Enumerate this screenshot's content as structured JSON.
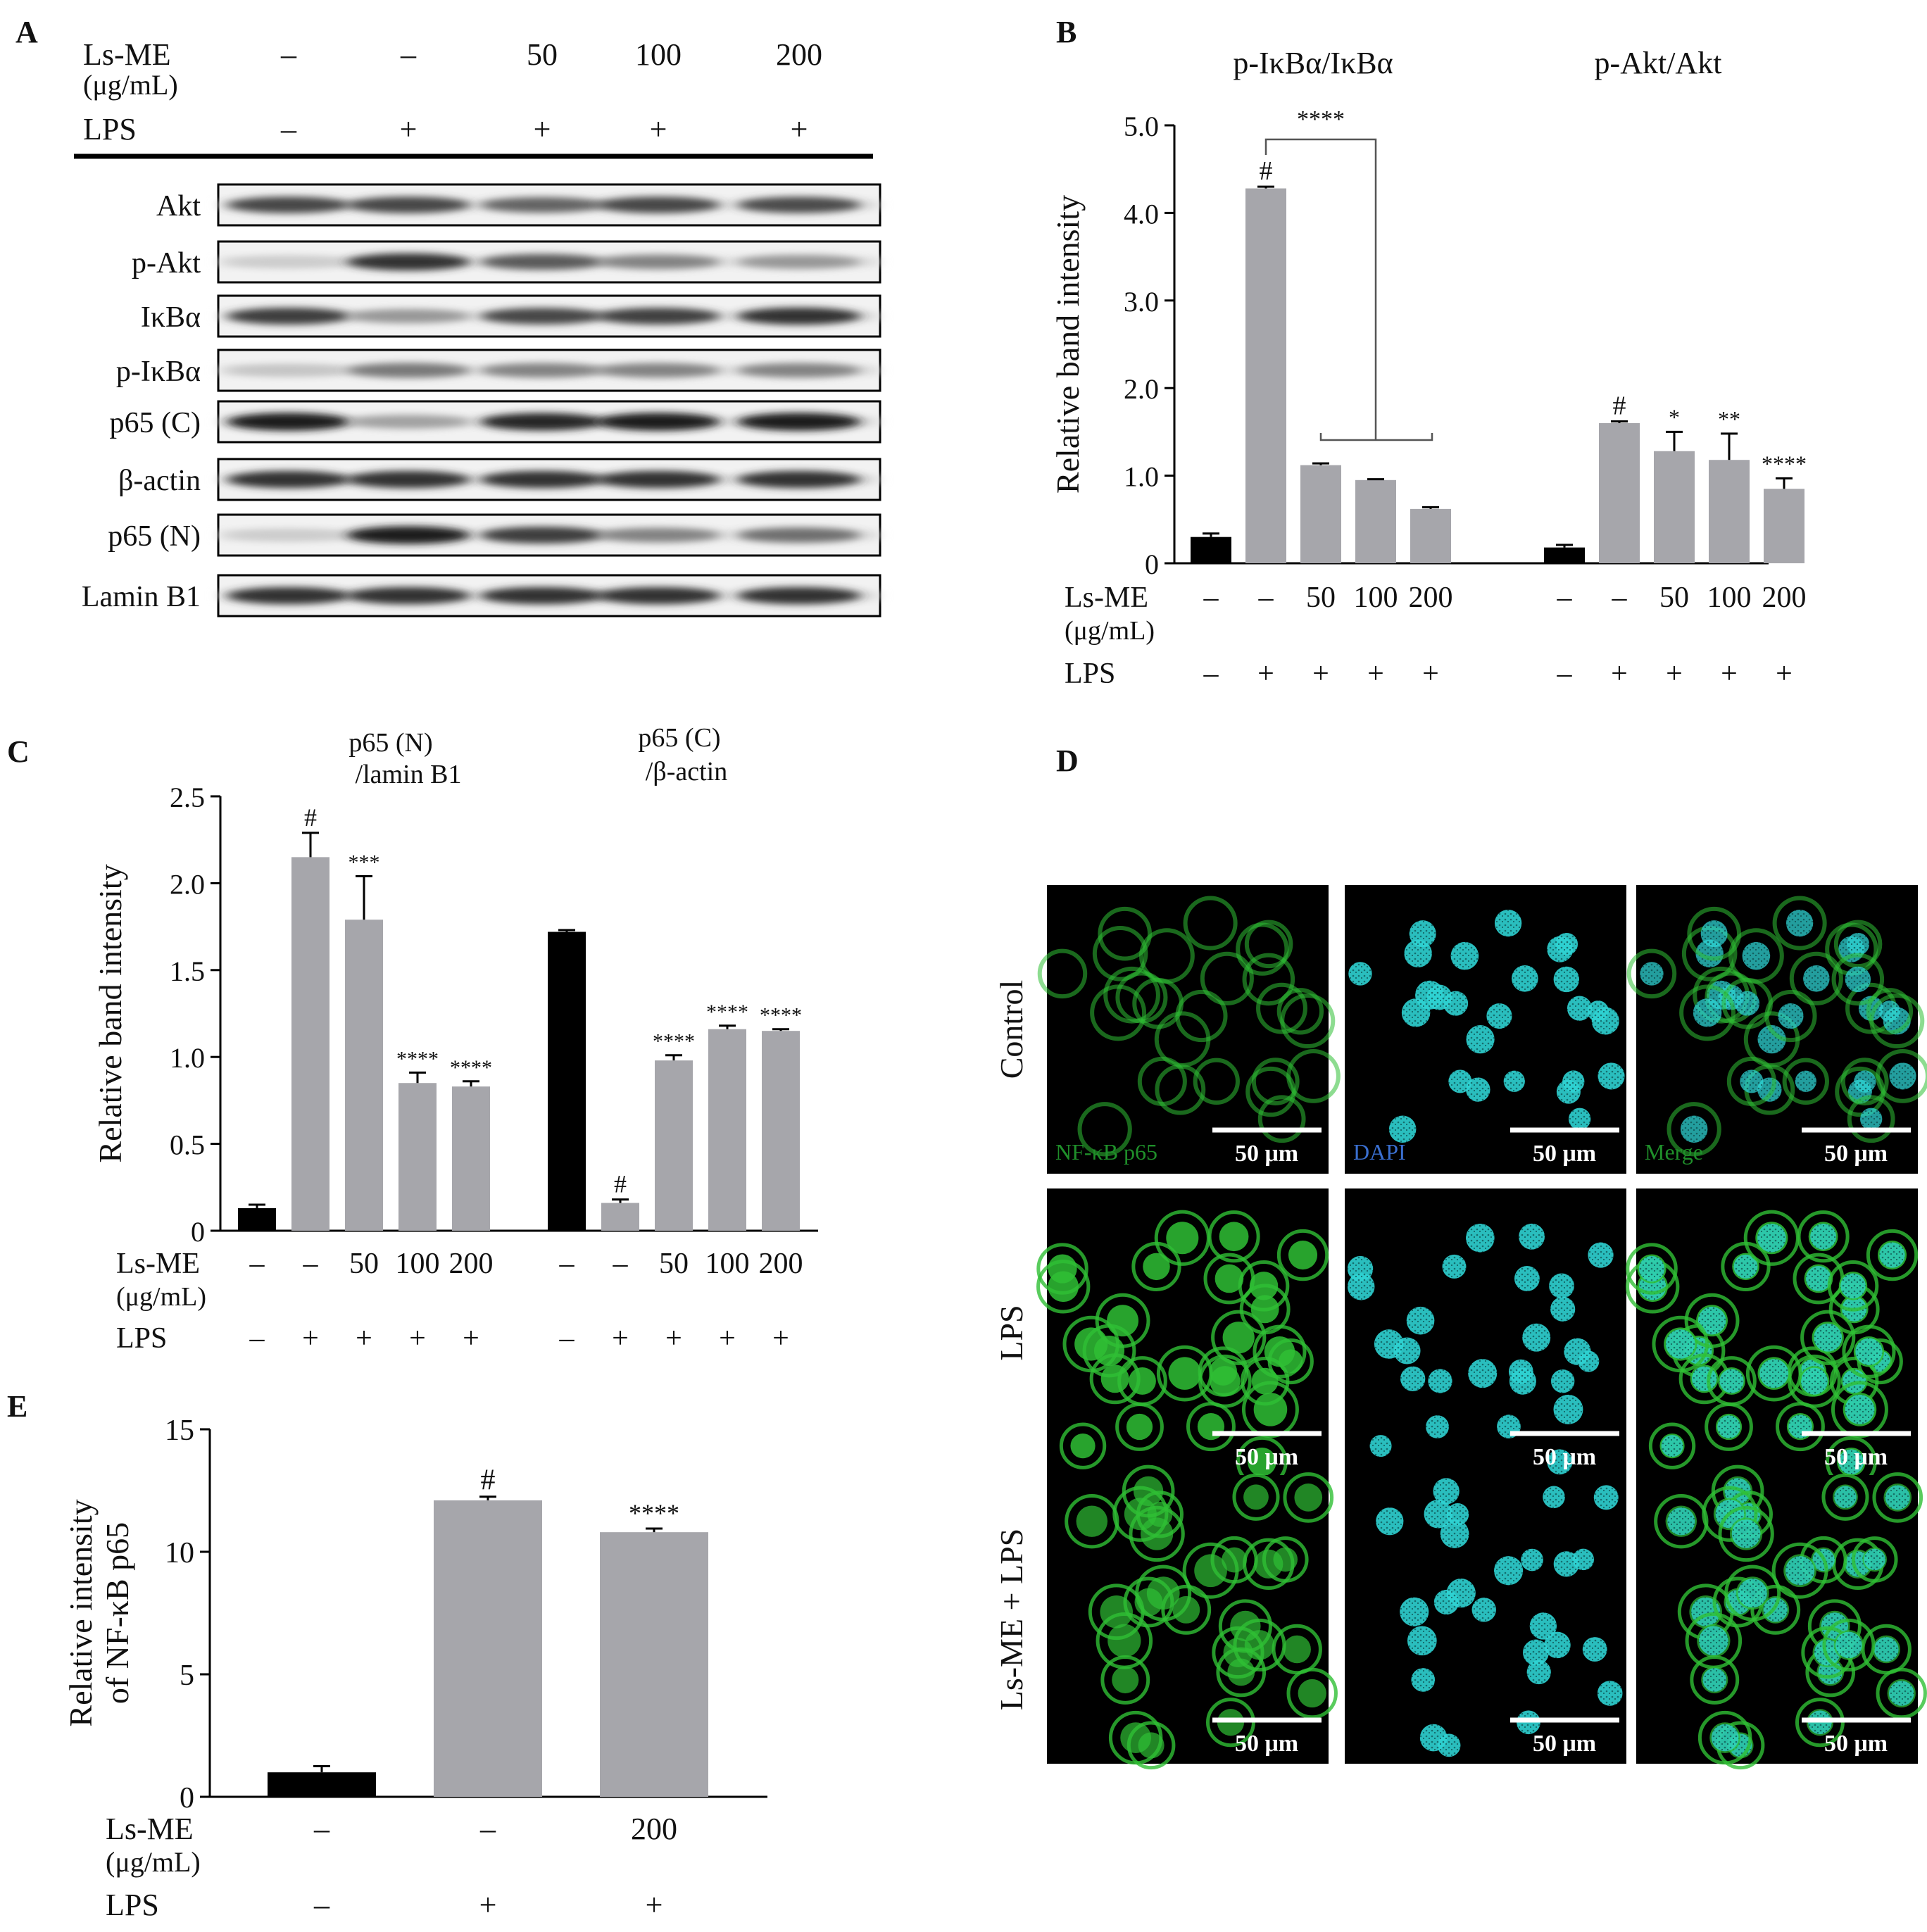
{
  "panels": {
    "A": {
      "letter": "A",
      "header": {
        "lsme_label": "Ls-ME",
        "unit_label": "(μg/mL)",
        "lps_label": "LPS",
        "lsme_values": [
          "–",
          "–",
          "50",
          "100",
          "200"
        ],
        "lps_values": [
          "–",
          "+",
          "+",
          "+",
          "+"
        ]
      },
      "blots": [
        {
          "label": "Akt",
          "intensity": [
            0.75,
            0.75,
            0.6,
            0.75,
            0.72
          ]
        },
        {
          "label": "p-Akt",
          "intensity": [
            0.08,
            0.85,
            0.65,
            0.45,
            0.35
          ]
        },
        {
          "label": "IκBα",
          "intensity": [
            0.8,
            0.35,
            0.75,
            0.78,
            0.85
          ]
        },
        {
          "label": "p-IκBα",
          "intensity": [
            0.12,
            0.5,
            0.45,
            0.45,
            0.45
          ]
        },
        {
          "label": "p65 (C)",
          "intensity": [
            0.95,
            0.3,
            0.9,
            0.95,
            0.95
          ]
        },
        {
          "label": "β-actin",
          "intensity": [
            0.85,
            0.85,
            0.85,
            0.85,
            0.85
          ]
        },
        {
          "label": "p65 (N)",
          "intensity": [
            0.08,
            0.95,
            0.8,
            0.45,
            0.55
          ]
        },
        {
          "label": "Lamin B1",
          "intensity": [
            0.85,
            0.85,
            0.85,
            0.85,
            0.85
          ]
        }
      ]
    },
    "B": {
      "letter": "B"
    },
    "C": {
      "letter": "C"
    },
    "D": {
      "letter": "D",
      "row_labels": [
        "Control",
        "LPS",
        "Ls-ME + LPS"
      ],
      "channel_labels": [
        "NF-κB p65",
        "DAPI",
        "Merge"
      ],
      "scale_bar_label": "50 μm",
      "colors": {
        "nfkb": "#2fbf35",
        "dapi": "#2fd3d3",
        "background": "#000000",
        "nfkb_label": "#1f8f2a",
        "dapi_label": "#3a6fd0",
        "merge_label": "#1f8f2a"
      }
    },
    "E": {
      "letter": "E"
    }
  },
  "chart_data": [
    {
      "panel": "B",
      "type": "bar",
      "ylabel": "Relative band intensity",
      "ylim": [
        0,
        5
      ],
      "yticks": [
        "0",
        "1.0",
        "2.0",
        "3.0",
        "4.0",
        "5.0"
      ],
      "groups": [
        {
          "name": "p-IκBα/IκBα",
          "lsme": [
            "–",
            "–",
            "50",
            "100",
            "200"
          ],
          "lps": [
            "–",
            "+",
            "+",
            "+",
            "+"
          ],
          "values": [
            0.3,
            4.28,
            1.12,
            0.95,
            0.62
          ],
          "errors": [
            0.04,
            0.02,
            0.02,
            0.01,
            0.02
          ],
          "annotations": [
            "",
            "#",
            "",
            "",
            ""
          ]
        },
        {
          "name": "p-Akt/Akt",
          "lsme": [
            "–",
            "–",
            "50",
            "100",
            "200"
          ],
          "lps": [
            "–",
            "+",
            "+",
            "+",
            "+"
          ],
          "values": [
            0.18,
            1.6,
            1.28,
            1.18,
            0.85
          ],
          "errors": [
            0.03,
            0.02,
            0.22,
            0.3,
            0.12
          ],
          "annotations": [
            "",
            "#",
            "*",
            "**",
            "****"
          ]
        }
      ],
      "bracket_label": "****",
      "colors": {
        "control": "#000000",
        "treated": "#a6a6ab"
      },
      "axis_labels": {
        "lsme": "Ls-ME",
        "unit": "(μg/mL)",
        "lps": "LPS"
      }
    },
    {
      "panel": "C",
      "type": "bar",
      "ylabel": "Relative band intensity",
      "ylim": [
        0,
        2.5
      ],
      "yticks": [
        "0",
        "0.5",
        "1.0",
        "1.5",
        "2.0",
        "2.5"
      ],
      "groups": [
        {
          "name_line1": "p65 (N)",
          "name_line2": "/lamin B1",
          "lsme": [
            "–",
            "–",
            "50",
            "100",
            "200"
          ],
          "lps": [
            "–",
            "+",
            "+",
            "+",
            "+"
          ],
          "values": [
            0.13,
            2.15,
            1.79,
            0.85,
            0.83
          ],
          "errors": [
            0.02,
            0.14,
            0.25,
            0.06,
            0.03
          ],
          "annotations": [
            "",
            "#",
            "***",
            "****",
            "****"
          ]
        },
        {
          "name_line1": "p65 (C)",
          "name_line2": "/β-actin",
          "lsme": [
            "–",
            "–",
            "50",
            "100",
            "200"
          ],
          "lps": [
            "–",
            "+",
            "+",
            "+",
            "+"
          ],
          "values": [
            1.72,
            0.16,
            0.98,
            1.16,
            1.15
          ],
          "errors": [
            0.01,
            0.02,
            0.03,
            0.02,
            0.01
          ],
          "annotations": [
            "",
            "#",
            "****",
            "****",
            "****"
          ]
        }
      ],
      "colors": {
        "control": "#000000",
        "treated": "#a6a6ab"
      },
      "axis_labels": {
        "lsme": "Ls-ME",
        "unit": "(μg/mL)",
        "lps": "LPS"
      }
    },
    {
      "panel": "E",
      "type": "bar",
      "ylabel_line1": "Relative intensity",
      "ylabel_line2": "of NF-κB p65",
      "ylim": [
        0,
        15
      ],
      "yticks": [
        "0",
        "5",
        "10",
        "15"
      ],
      "lsme": [
        "–",
        "–",
        "200"
      ],
      "lps": [
        "–",
        "+",
        "+"
      ],
      "values": [
        1.0,
        12.1,
        10.8
      ],
      "errors": [
        0.25,
        0.15,
        0.15
      ],
      "annotations": [
        "",
        "#",
        "****"
      ],
      "colors": {
        "control": "#000000",
        "treated": "#a6a6ab"
      },
      "axis_labels": {
        "lsme": "Ls-ME",
        "unit": "(μg/mL)",
        "lps": "LPS"
      }
    }
  ]
}
